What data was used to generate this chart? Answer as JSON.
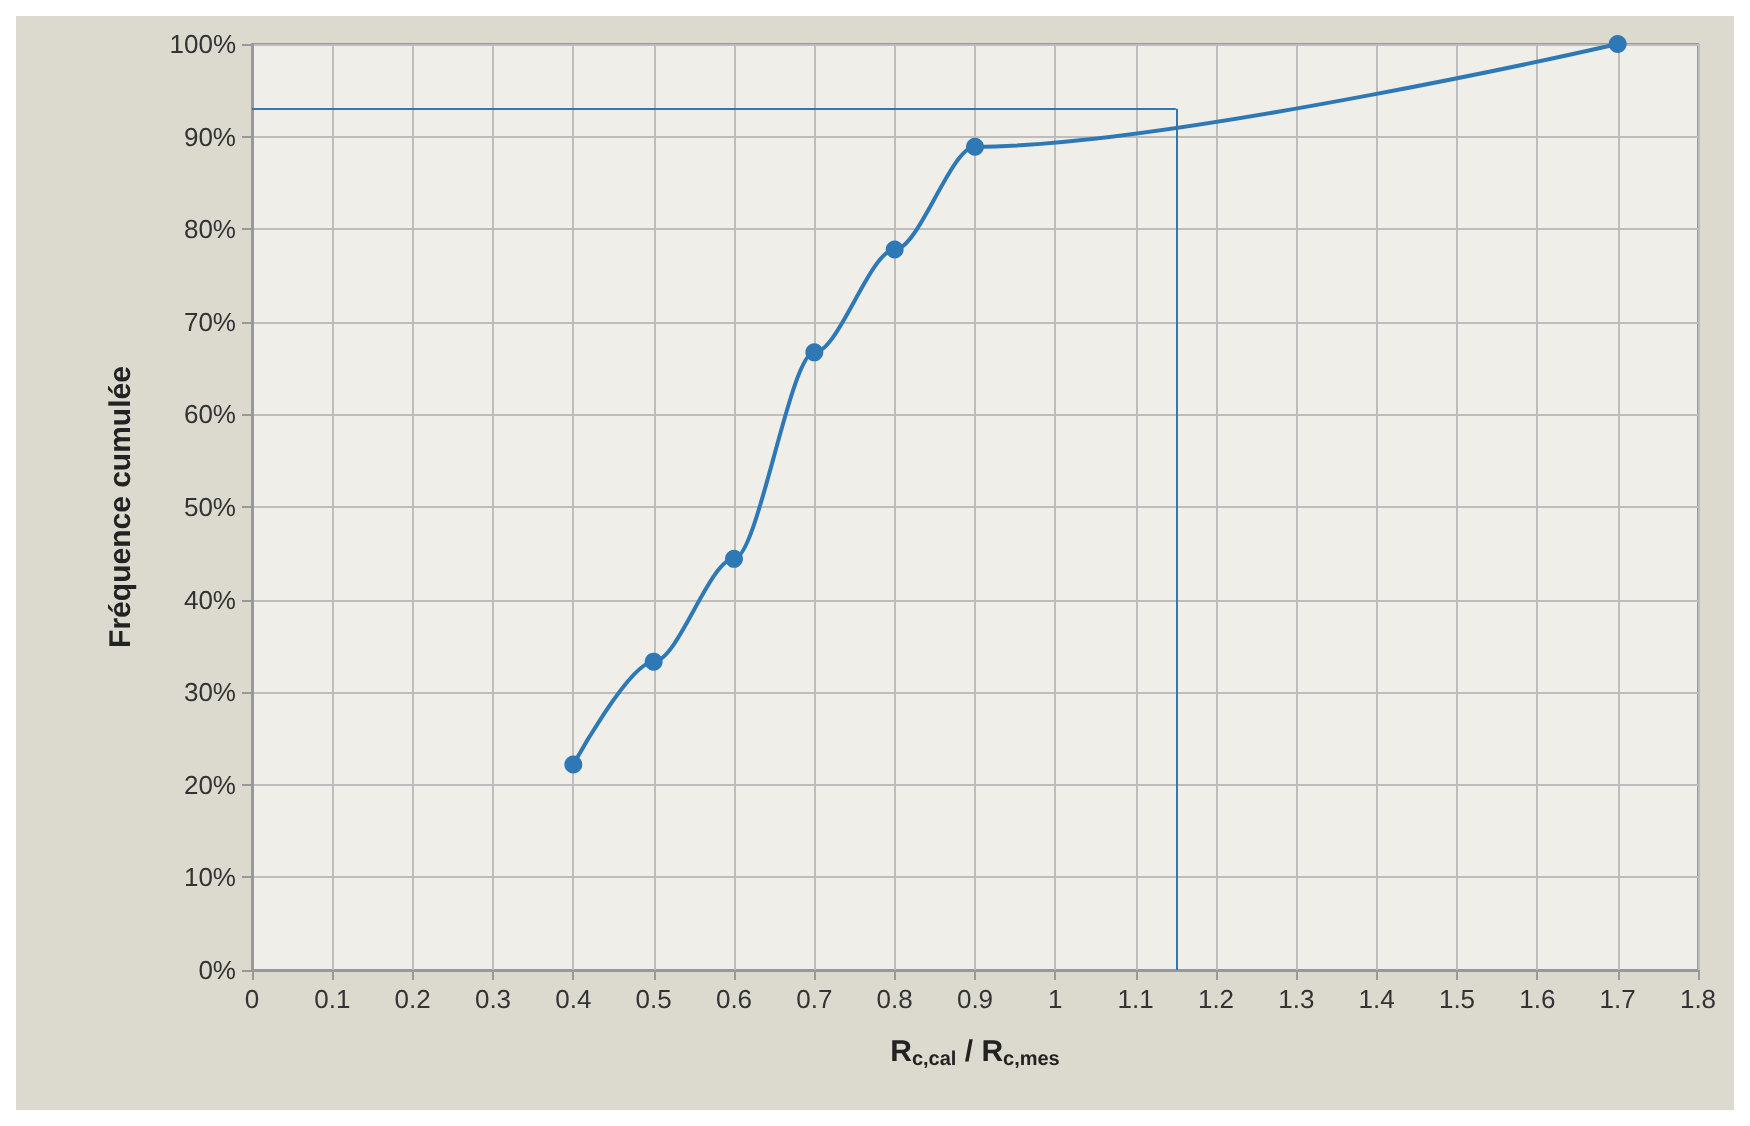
{
  "chart_data": {
    "type": "line",
    "xlabel": "R$_{c,cal}$ / R$_{c,mes}$",
    "ylabel": "Fréquence cumulée",
    "x": [
      0.4,
      0.5,
      0.6,
      0.7,
      0.8,
      0.9,
      1.7
    ],
    "series": [
      {
        "color": "#2e79b5",
        "values": [
          22.2,
          33.3,
          44.4,
          66.7,
          77.8,
          88.9,
          100
        ]
      }
    ],
    "xlim": [
      0,
      1.8
    ],
    "xticks": [
      0,
      0.1,
      0.2,
      0.3,
      0.4,
      0.5,
      0.6,
      0.7,
      0.8,
      0.9,
      1,
      1.1,
      1.2,
      1.3,
      1.4,
      1.5,
      1.6,
      1.7,
      1.8
    ],
    "ylim": [
      0,
      100
    ],
    "yticks": [
      {
        "value": 0,
        "label": "0%"
      },
      {
        "value": 10,
        "label": "10%"
      },
      {
        "value": 20,
        "label": "20%"
      },
      {
        "value": 30,
        "label": "30%"
      },
      {
        "value": 40,
        "label": "40%"
      },
      {
        "value": 50,
        "label": "50%"
      },
      {
        "value": 60,
        "label": "60%"
      },
      {
        "value": 70,
        "label": "70%"
      },
      {
        "value": 80,
        "label": "80%"
      },
      {
        "value": 90,
        "label": "90%"
      },
      {
        "value": 100,
        "label": "100%"
      }
    ],
    "ref_lines": [
      {
        "axis": "y",
        "value": 93,
        "color": "#2e79b5"
      },
      {
        "axis": "x",
        "value": 1.15,
        "color": "#2e79b5"
      }
    ],
    "grid": true,
    "marker": "circle",
    "line_style": "solid"
  }
}
